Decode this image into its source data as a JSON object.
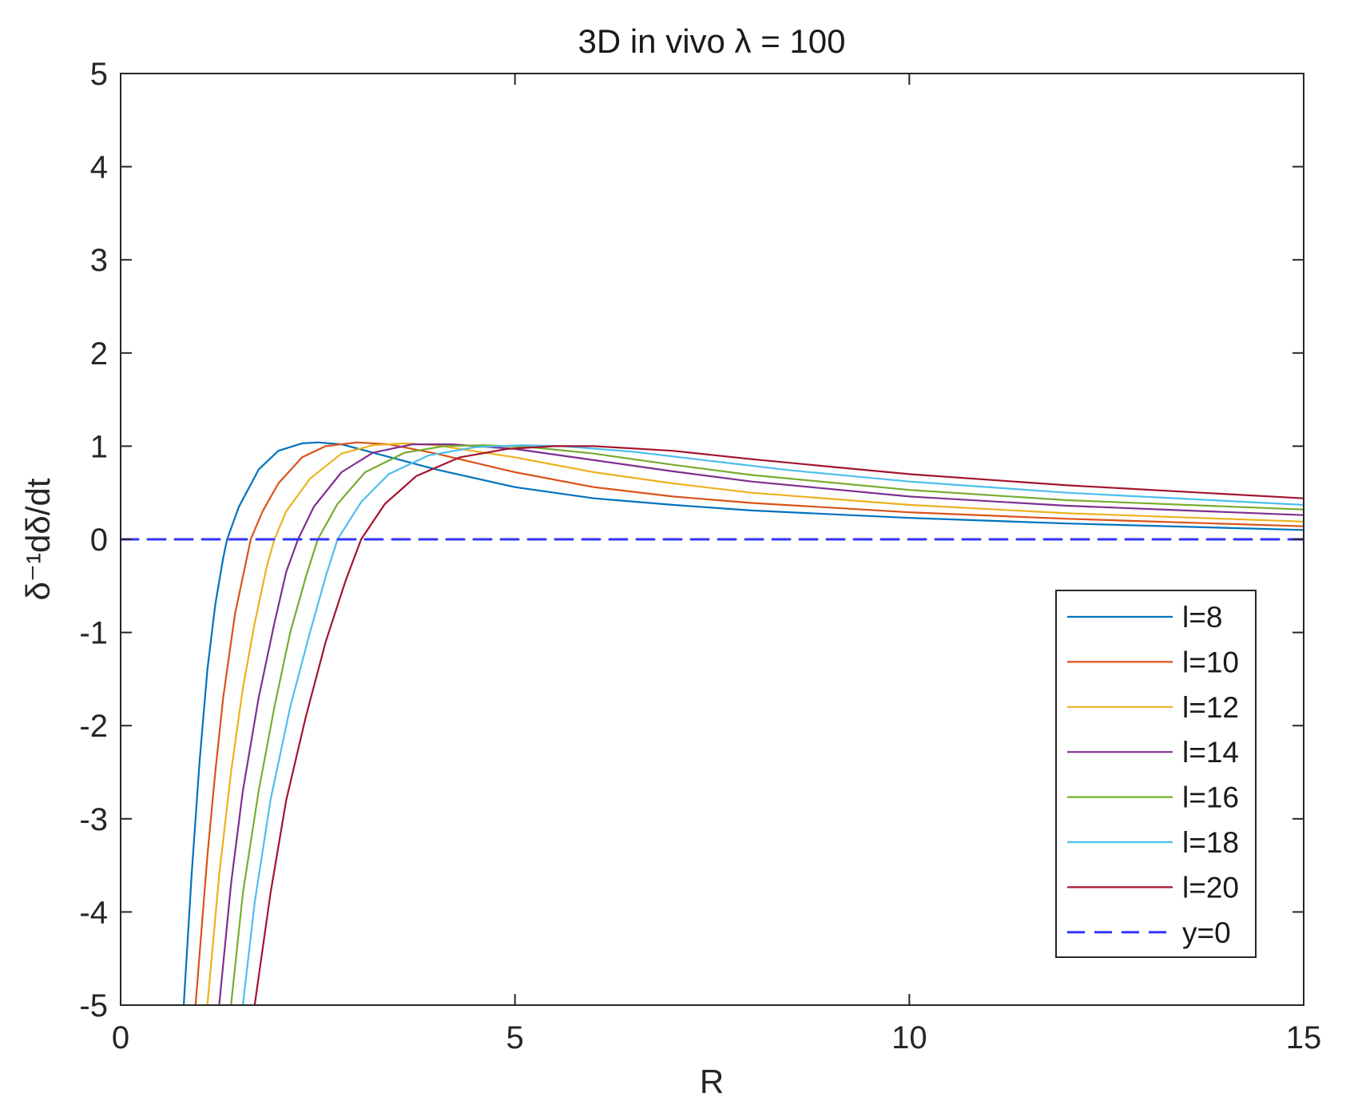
{
  "chart_data": {
    "type": "line",
    "title": "3D in vivo λ = 100",
    "xlabel": "R",
    "ylabel": "δ⁻¹dδ/dt",
    "xlim": [
      0,
      15
    ],
    "ylim": [
      -5,
      5
    ],
    "xticks": [
      "0",
      "5",
      "10",
      "15"
    ],
    "yticks": [
      "-5",
      "-4",
      "-3",
      "-2",
      "-1",
      "0",
      "1",
      "2",
      "3",
      "4",
      "5"
    ],
    "grid": false,
    "legend_position": "bottom-right",
    "series": [
      {
        "name": "l=8",
        "color": "#0072BD",
        "points": [
          [
            0.8,
            -5
          ],
          [
            0.9,
            -3.6
          ],
          [
            1.0,
            -2.4
          ],
          [
            1.1,
            -1.4
          ],
          [
            1.2,
            -0.7
          ],
          [
            1.3,
            -0.2
          ],
          [
            1.35,
            0
          ],
          [
            1.5,
            0.35
          ],
          [
            1.75,
            0.75
          ],
          [
            2.0,
            0.95
          ],
          [
            2.3,
            1.03
          ],
          [
            2.5,
            1.04
          ],
          [
            2.8,
            1.02
          ],
          [
            3.2,
            0.93
          ],
          [
            4.0,
            0.75
          ],
          [
            5.0,
            0.56
          ],
          [
            6.0,
            0.44
          ],
          [
            7.0,
            0.37
          ],
          [
            8.0,
            0.31
          ],
          [
            10.0,
            0.23
          ],
          [
            12.0,
            0.17
          ],
          [
            15.0,
            0.1
          ]
        ]
      },
      {
        "name": "l=10",
        "color": "#D95319",
        "points": [
          [
            0.95,
            -5
          ],
          [
            1.1,
            -3.4
          ],
          [
            1.2,
            -2.5
          ],
          [
            1.3,
            -1.7
          ],
          [
            1.45,
            -0.8
          ],
          [
            1.6,
            -0.2
          ],
          [
            1.65,
            0
          ],
          [
            1.8,
            0.3
          ],
          [
            2.0,
            0.6
          ],
          [
            2.3,
            0.88
          ],
          [
            2.6,
            1.0
          ],
          [
            3.0,
            1.04
          ],
          [
            3.4,
            1.02
          ],
          [
            4.0,
            0.92
          ],
          [
            5.0,
            0.72
          ],
          [
            6.0,
            0.56
          ],
          [
            7.0,
            0.46
          ],
          [
            8.0,
            0.39
          ],
          [
            10.0,
            0.29
          ],
          [
            12.0,
            0.22
          ],
          [
            15.0,
            0.14
          ]
        ]
      },
      {
        "name": "l=12",
        "color": "#EDB120",
        "points": [
          [
            1.1,
            -5
          ],
          [
            1.25,
            -3.6
          ],
          [
            1.4,
            -2.5
          ],
          [
            1.55,
            -1.6
          ],
          [
            1.7,
            -0.9
          ],
          [
            1.85,
            -0.3
          ],
          [
            1.95,
            0
          ],
          [
            2.1,
            0.3
          ],
          [
            2.4,
            0.65
          ],
          [
            2.8,
            0.92
          ],
          [
            3.2,
            1.01
          ],
          [
            3.6,
            1.03
          ],
          [
            4.0,
            1.01
          ],
          [
            5.0,
            0.88
          ],
          [
            6.0,
            0.72
          ],
          [
            7.0,
            0.6
          ],
          [
            8.0,
            0.5
          ],
          [
            10.0,
            0.37
          ],
          [
            12.0,
            0.28
          ],
          [
            15.0,
            0.19
          ]
        ]
      },
      {
        "name": "l=14",
        "color": "#7E2F8E",
        "points": [
          [
            1.25,
            -5
          ],
          [
            1.4,
            -3.7
          ],
          [
            1.55,
            -2.7
          ],
          [
            1.75,
            -1.7
          ],
          [
            1.95,
            -0.9
          ],
          [
            2.1,
            -0.35
          ],
          [
            2.25,
            0
          ],
          [
            2.45,
            0.35
          ],
          [
            2.8,
            0.72
          ],
          [
            3.2,
            0.93
          ],
          [
            3.7,
            1.02
          ],
          [
            4.2,
            1.02
          ],
          [
            5.0,
            0.97
          ],
          [
            6.0,
            0.85
          ],
          [
            7.0,
            0.73
          ],
          [
            8.0,
            0.62
          ],
          [
            10.0,
            0.46
          ],
          [
            12.0,
            0.36
          ],
          [
            15.0,
            0.26
          ]
        ]
      },
      {
        "name": "l=16",
        "color": "#77AC30",
        "points": [
          [
            1.4,
            -5
          ],
          [
            1.55,
            -3.8
          ],
          [
            1.75,
            -2.7
          ],
          [
            1.95,
            -1.8
          ],
          [
            2.15,
            -1.0
          ],
          [
            2.35,
            -0.4
          ],
          [
            2.5,
            0
          ],
          [
            2.75,
            0.38
          ],
          [
            3.1,
            0.72
          ],
          [
            3.6,
            0.93
          ],
          [
            4.1,
            1.0
          ],
          [
            4.6,
            1.01
          ],
          [
            5.2,
            0.99
          ],
          [
            6.0,
            0.92
          ],
          [
            7.0,
            0.8
          ],
          [
            8.0,
            0.69
          ],
          [
            10.0,
            0.53
          ],
          [
            12.0,
            0.42
          ],
          [
            15.0,
            0.32
          ]
        ]
      },
      {
        "name": "l=18",
        "color": "#4DBEEE",
        "points": [
          [
            1.55,
            -5
          ],
          [
            1.7,
            -3.9
          ],
          [
            1.9,
            -2.8
          ],
          [
            2.15,
            -1.8
          ],
          [
            2.4,
            -1.0
          ],
          [
            2.6,
            -0.4
          ],
          [
            2.75,
            0
          ],
          [
            3.05,
            0.4
          ],
          [
            3.4,
            0.7
          ],
          [
            3.9,
            0.9
          ],
          [
            4.5,
            0.99
          ],
          [
            5.1,
            1.01
          ],
          [
            5.6,
            1.0
          ],
          [
            6.5,
            0.94
          ],
          [
            7.5,
            0.84
          ],
          [
            8.5,
            0.74
          ],
          [
            10.0,
            0.62
          ],
          [
            12.0,
            0.5
          ],
          [
            15.0,
            0.37
          ]
        ]
      },
      {
        "name": "l=20",
        "color": "#A2142F",
        "points": [
          [
            1.7,
            -5
          ],
          [
            1.9,
            -3.8
          ],
          [
            2.1,
            -2.8
          ],
          [
            2.35,
            -1.9
          ],
          [
            2.6,
            -1.1
          ],
          [
            2.85,
            -0.45
          ],
          [
            3.05,
            0
          ],
          [
            3.35,
            0.38
          ],
          [
            3.75,
            0.68
          ],
          [
            4.3,
            0.88
          ],
          [
            4.9,
            0.97
          ],
          [
            5.5,
            1.0
          ],
          [
            6.0,
            1.0
          ],
          [
            7.0,
            0.95
          ],
          [
            8.0,
            0.86
          ],
          [
            9.0,
            0.78
          ],
          [
            10.0,
            0.7
          ],
          [
            12.0,
            0.58
          ],
          [
            15.0,
            0.44
          ]
        ]
      },
      {
        "name": "y=0",
        "color": "#3333FF",
        "dashed": true,
        "points": [
          [
            0,
            0
          ],
          [
            15,
            0
          ]
        ]
      }
    ]
  }
}
